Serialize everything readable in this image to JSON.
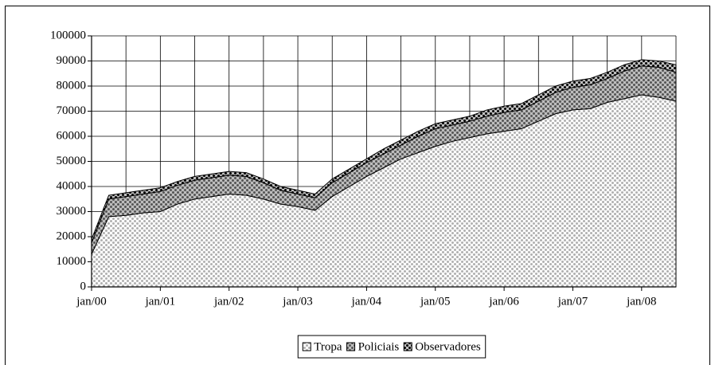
{
  "chart_data": {
    "type": "area",
    "stacked": true,
    "categories": [
      "jan/00",
      null,
      null,
      null,
      "jan/01",
      null,
      null,
      null,
      "jan/02",
      null,
      null,
      null,
      "jan/03",
      null,
      null,
      null,
      "jan/04",
      null,
      null,
      null,
      "jan/05",
      null,
      null,
      null,
      "jan/06",
      null,
      null,
      null,
      "jan/07",
      null,
      null,
      null,
      "jan/08",
      null,
      null
    ],
    "series": [
      {
        "name": "Tropa",
        "color": "#b0b0b0",
        "values": [
          13000,
          28000,
          28500,
          29500,
          30000,
          33000,
          35000,
          36000,
          37000,
          36500,
          35000,
          33000,
          32000,
          30500,
          36000,
          40000,
          44000,
          47500,
          51000,
          53500,
          56000,
          58000,
          59500,
          61000,
          62000,
          63000,
          66000,
          69000,
          70500,
          71000,
          73500,
          75000,
          76500,
          75500,
          74000
        ]
      },
      {
        "name": "Policiais",
        "color": "#555555",
        "values": [
          4500,
          7000,
          7500,
          7500,
          8000,
          7500,
          7500,
          7500,
          7500,
          7500,
          6500,
          5500,
          5000,
          5000,
          5500,
          5500,
          5500,
          5500,
          5500,
          6500,
          7000,
          6500,
          6500,
          7000,
          7500,
          7500,
          8000,
          8500,
          9000,
          9500,
          9500,
          11000,
          11500,
          12000,
          11500
        ]
      },
      {
        "name": "Observadores",
        "color": "#000000",
        "values": [
          1500,
          1500,
          1500,
          1500,
          1500,
          1500,
          1500,
          1500,
          1500,
          1500,
          1500,
          1500,
          1500,
          1500,
          1500,
          1500,
          1500,
          2000,
          2000,
          2000,
          2000,
          2000,
          2000,
          2500,
          2500,
          2500,
          2500,
          2500,
          2500,
          2500,
          2500,
          2500,
          2500,
          2500,
          3000
        ]
      }
    ],
    "ylim": [
      0,
      100000
    ],
    "yticks": [
      0,
      10000,
      20000,
      30000,
      40000,
      50000,
      60000,
      70000,
      80000,
      90000,
      100000
    ],
    "grid": true,
    "legend": "bottom"
  }
}
